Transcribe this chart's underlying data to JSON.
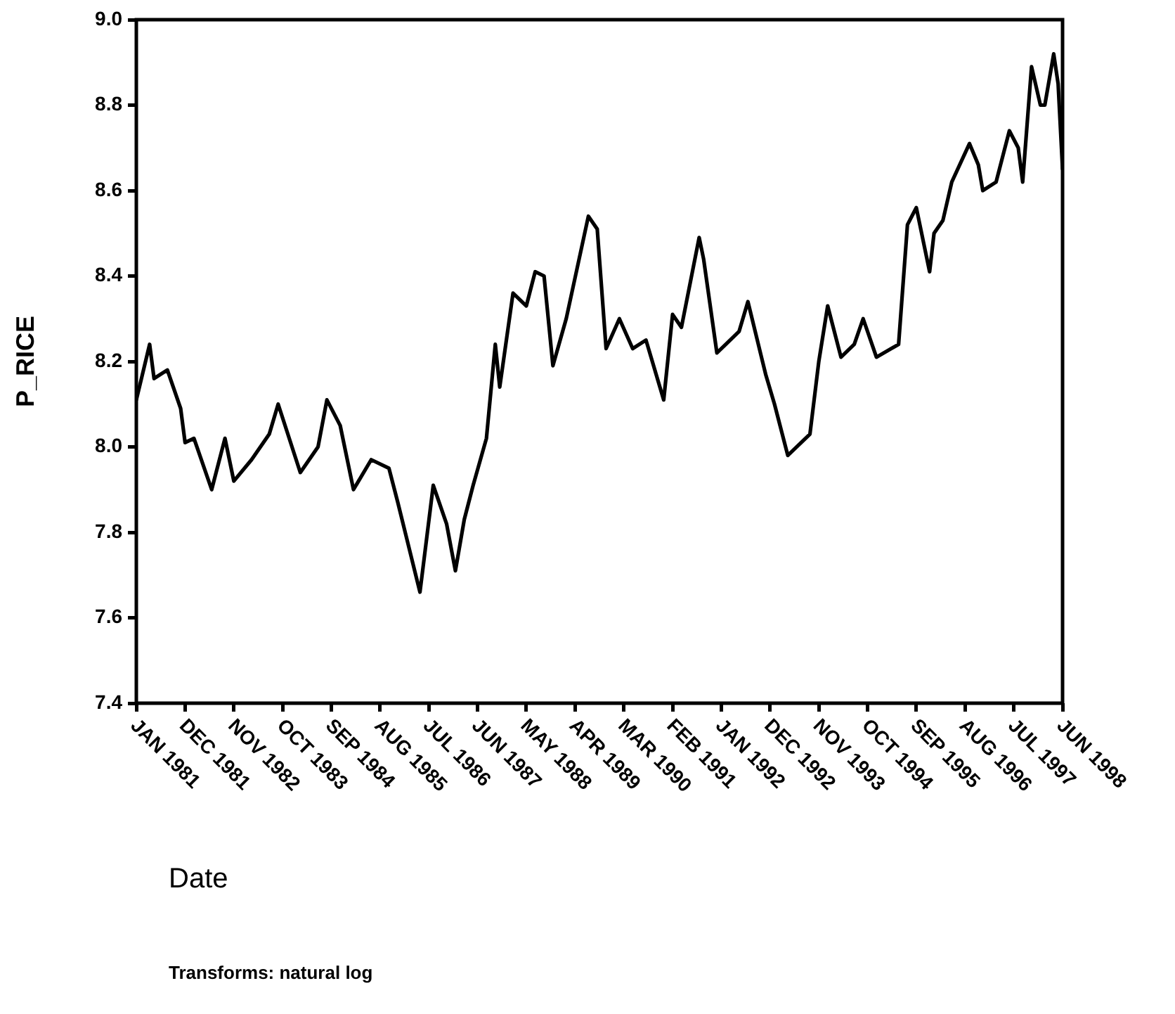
{
  "chart_data": {
    "type": "line",
    "ylabel": "P_RICE",
    "xlabel": "Date",
    "annotations": [
      "Transforms: natural log"
    ],
    "x": [
      "1981-01",
      "1981-04",
      "1981-05",
      "1981-08",
      "1981-11",
      "1981-12",
      "1982-02",
      "1982-06",
      "1982-09",
      "1982-11",
      "1983-03",
      "1983-07",
      "1983-09",
      "1984-02",
      "1984-06",
      "1984-08",
      "1984-11",
      "1985-02",
      "1985-06",
      "1985-10",
      "1985-12",
      "1986-05",
      "1986-08",
      "1986-11",
      "1987-01",
      "1987-03",
      "1987-05",
      "1987-08",
      "1987-10",
      "1987-11",
      "1988-02",
      "1988-05",
      "1988-07",
      "1988-09",
      "1988-11",
      "1989-02",
      "1989-07",
      "1989-09",
      "1989-11",
      "1990-02",
      "1990-05",
      "1990-08",
      "1990-12",
      "1991-02",
      "1991-04",
      "1991-08",
      "1991-09",
      "1991-12",
      "1992-03",
      "1992-05",
      "1992-07",
      "1992-11",
      "1993-01",
      "1993-04",
      "1993-09",
      "1993-11",
      "1994-01",
      "1994-04",
      "1994-07",
      "1994-09",
      "1994-12",
      "1995-05",
      "1995-07",
      "1995-09",
      "1995-12",
      "1996-01",
      "1996-03",
      "1996-05",
      "1996-09",
      "1996-11",
      "1996-12",
      "1997-03",
      "1997-06",
      "1997-08",
      "1997-09",
      "1997-11",
      "1998-01",
      "1998-02",
      "1998-04",
      "1998-05",
      "1998-06"
    ],
    "series": [
      {
        "color": "#000000",
        "values": [
          8.11,
          8.24,
          8.16,
          8.18,
          8.09,
          8.01,
          8.02,
          7.9,
          8.02,
          7.92,
          7.97,
          8.03,
          8.1,
          7.94,
          8.0,
          8.11,
          8.05,
          7.9,
          7.97,
          7.95,
          7.87,
          7.66,
          7.91,
          7.82,
          7.71,
          7.83,
          7.91,
          8.02,
          8.24,
          8.14,
          8.36,
          8.33,
          8.41,
          8.4,
          8.19,
          8.3,
          8.54,
          8.51,
          8.23,
          8.3,
          8.23,
          8.25,
          8.11,
          8.31,
          8.28,
          8.49,
          8.44,
          8.22,
          8.25,
          8.27,
          8.34,
          8.17,
          8.1,
          7.98,
          8.03,
          8.2,
          8.33,
          8.21,
          8.24,
          8.3,
          8.21,
          8.24,
          8.52,
          8.56,
          8.41,
          8.5,
          8.53,
          8.62,
          8.71,
          8.66,
          8.6,
          8.62,
          8.74,
          8.7,
          8.62,
          8.89,
          8.8,
          8.8,
          8.92,
          8.85,
          8.65
        ]
      }
    ],
    "xlim": [
      "1981-01",
      "1998-06"
    ],
    "xticks": [
      {
        "value": "1981-01",
        "label": "JAN 1981"
      },
      {
        "value": "1981-12",
        "label": "DEC 1981"
      },
      {
        "value": "1982-11",
        "label": "NOV 1982"
      },
      {
        "value": "1983-10",
        "label": "OCT 1983"
      },
      {
        "value": "1984-09",
        "label": "SEP 1984"
      },
      {
        "value": "1985-08",
        "label": "AUG 1985"
      },
      {
        "value": "1986-07",
        "label": "JUL 1986"
      },
      {
        "value": "1987-06",
        "label": "JUN 1987"
      },
      {
        "value": "1988-05",
        "label": "MAY 1988"
      },
      {
        "value": "1989-04",
        "label": "APR 1989"
      },
      {
        "value": "1990-03",
        "label": "MAR 1990"
      },
      {
        "value": "1991-02",
        "label": "FEB 1991"
      },
      {
        "value": "1992-01",
        "label": "JAN 1992"
      },
      {
        "value": "1992-12",
        "label": "DEC 1992"
      },
      {
        "value": "1993-11",
        "label": "NOV 1993"
      },
      {
        "value": "1994-10",
        "label": "OCT 1994"
      },
      {
        "value": "1995-09",
        "label": "SEP 1995"
      },
      {
        "value": "1996-08",
        "label": "AUG 1996"
      },
      {
        "value": "1997-07",
        "label": "JUL 1997"
      },
      {
        "value": "1998-06",
        "label": "JUN 1998"
      }
    ],
    "ylim": [
      7.4,
      9.0
    ],
    "yticks": [
      {
        "value": 7.4,
        "label": "7.4"
      },
      {
        "value": 7.6,
        "label": "7.6"
      },
      {
        "value": 7.8,
        "label": "7.8"
      },
      {
        "value": 8.0,
        "label": "8.0"
      },
      {
        "value": 8.2,
        "label": "8.2"
      },
      {
        "value": 8.4,
        "label": "8.4"
      },
      {
        "value": 8.6,
        "label": "8.6"
      },
      {
        "value": 8.8,
        "label": "8.8"
      },
      {
        "value": 9.0,
        "label": "9.0"
      }
    ],
    "grid": false,
    "legend": false,
    "marker": "none",
    "line_style": "solid"
  }
}
